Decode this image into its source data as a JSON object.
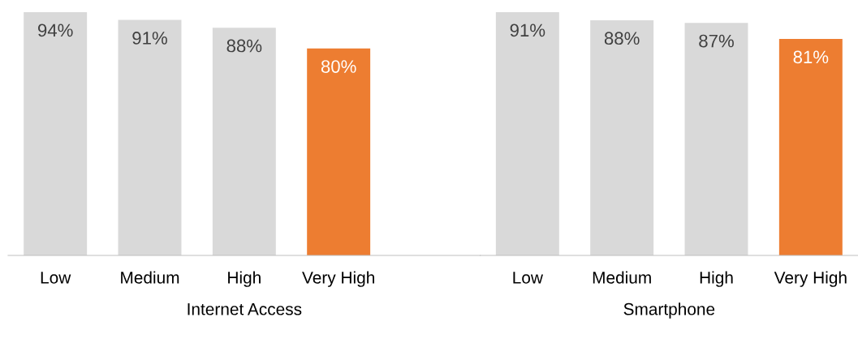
{
  "chart_data": [
    {
      "type": "bar",
      "xlabel": "Internet Access",
      "categories": [
        "Low",
        "Medium",
        "High",
        "Very High",
        null
      ],
      "values": [
        94,
        91,
        88,
        80,
        null
      ],
      "colors": [
        "#d9d9d9",
        "#d9d9d9",
        "#d9d9d9",
        "#ed7d31",
        "#d9d9d9"
      ],
      "value_labels": [
        "94%",
        "91%",
        "88%",
        "80%",
        null
      ],
      "tick_labels": "x",
      "grid": false,
      "legend": false
    },
    {
      "type": "bar",
      "xlabel": "Smartphone",
      "categories": [
        "Low",
        "Medium",
        "High",
        "Very High"
      ],
      "values": [
        91,
        88,
        87,
        81
      ],
      "colors": [
        "#d9d9d9",
        "#d9d9d9",
        "#d9d9d9",
        "#ed7d31"
      ],
      "value_labels": [
        "91%",
        "88%",
        "87%",
        "81%"
      ],
      "tick_labels": "x",
      "grid": false,
      "legend": false
    }
  ]
}
